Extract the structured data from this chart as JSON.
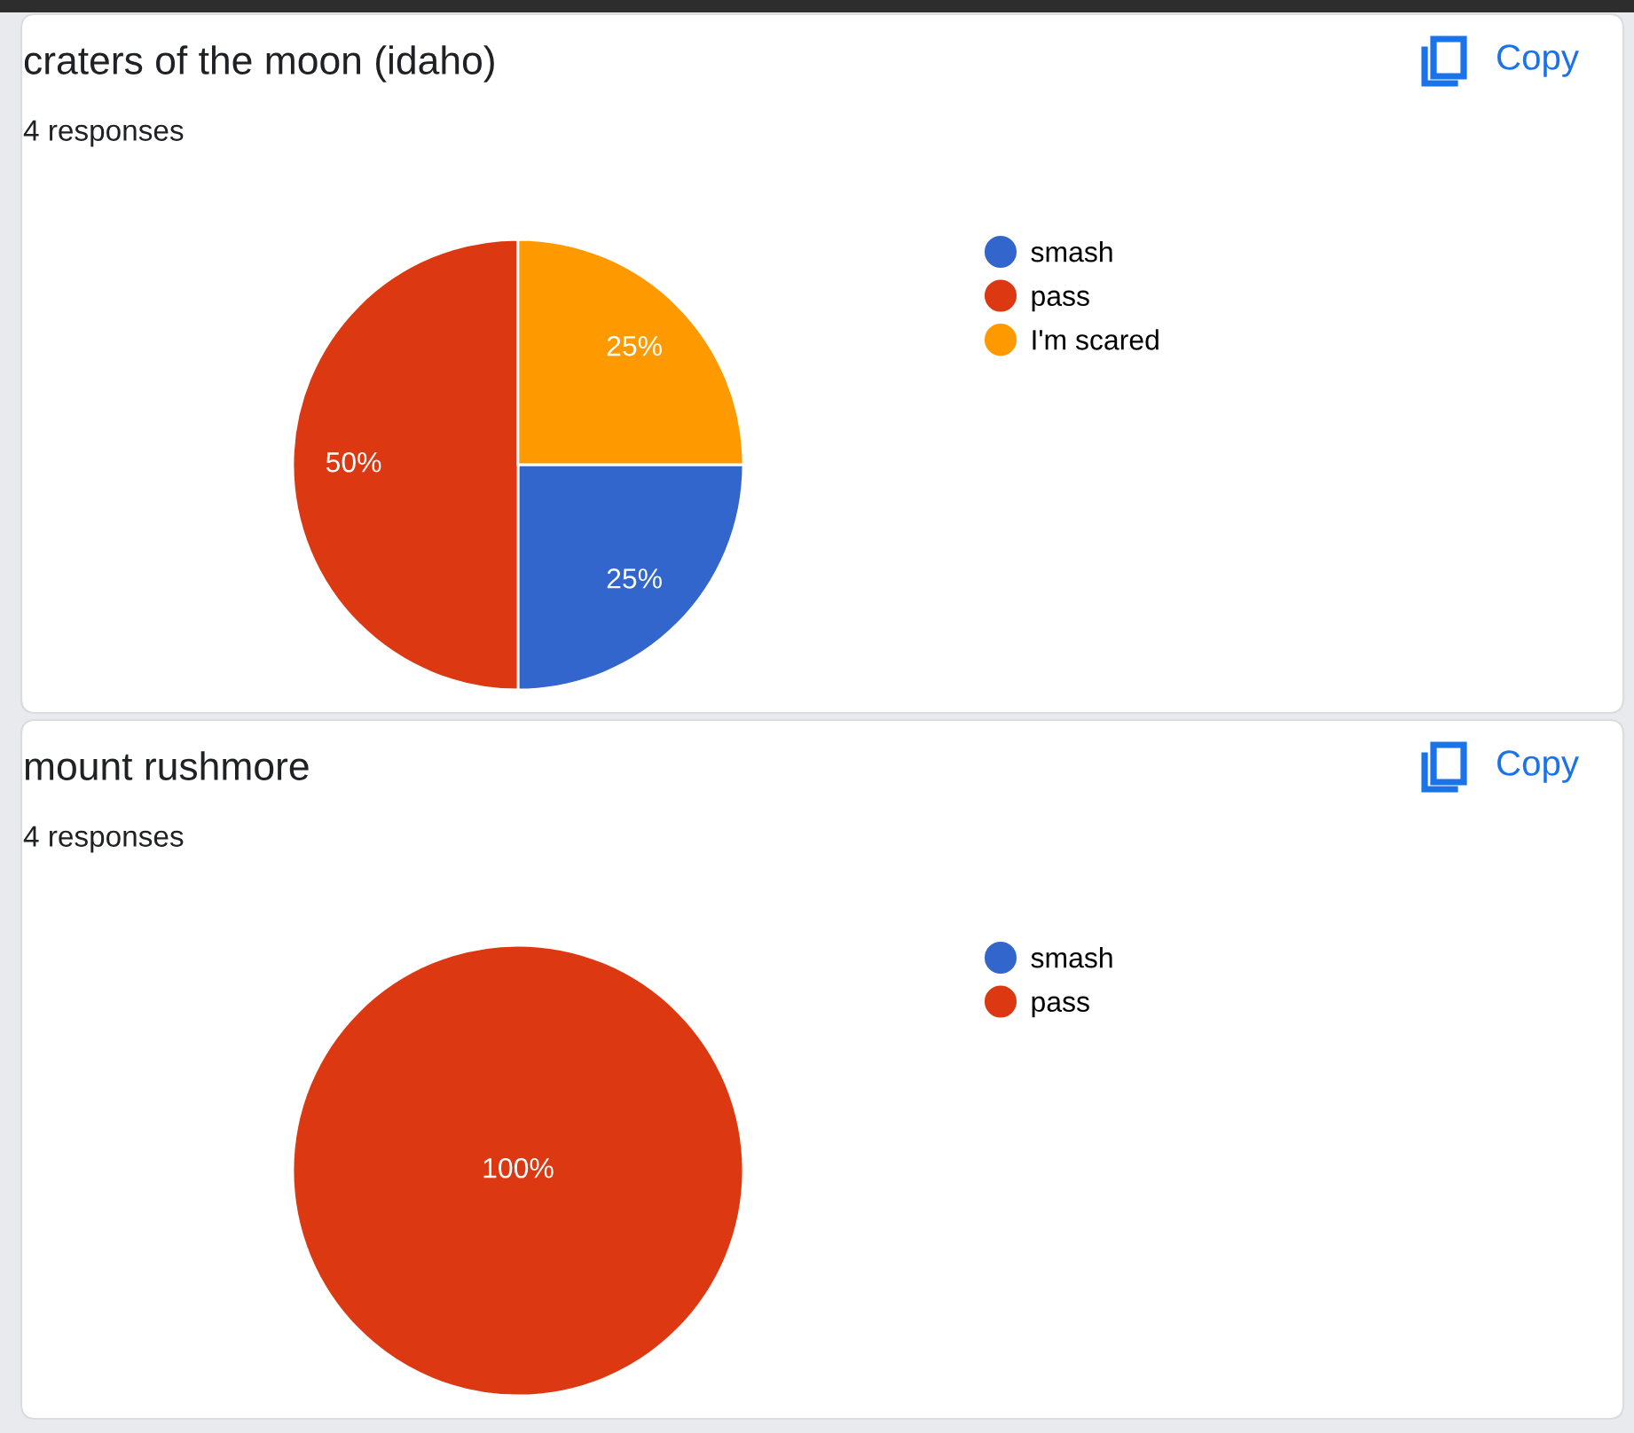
{
  "chart_data": [
    {
      "type": "pie",
      "title": "craters of the moon (idaho)",
      "subtitle": "4 responses",
      "categories": [
        "smash",
        "pass",
        "I'm scared"
      ],
      "values": [
        25,
        50,
        25
      ],
      "colors": [
        "#3366cc",
        "#dc3912",
        "#ff9900"
      ],
      "value_labels": [
        "25%",
        "50%",
        "25%"
      ],
      "legend": "top right",
      "annotations": [
        "Copy"
      ]
    },
    {
      "type": "pie",
      "title": "mount rushmore",
      "subtitle": "4 responses",
      "categories": [
        "smash",
        "pass"
      ],
      "values": [
        0,
        100
      ],
      "colors": [
        "#3366cc",
        "#dc3912"
      ],
      "value_labels": [
        null,
        "100%"
      ],
      "legend": "top right",
      "annotations": [
        "Copy"
      ]
    }
  ]
}
